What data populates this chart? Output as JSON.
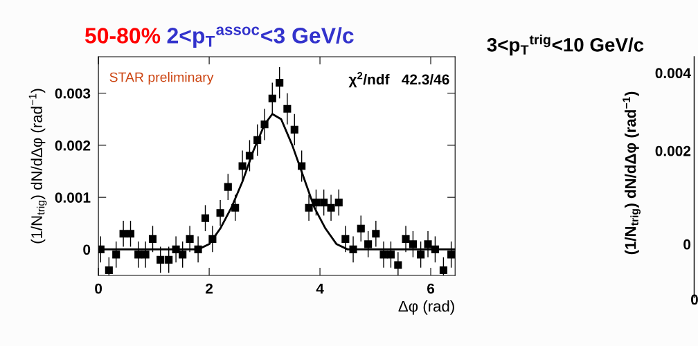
{
  "chart_data": [
    {
      "type": "scatter",
      "title": "50-80%",
      "subtitle": "2<p$_{T}$$^{assoc}$<3 GeV/c",
      "xlabel": "Δφ (rad)",
      "ylabel": "(1/N$_{trig}$) dN/dΔφ (rad$^{−1}$)",
      "annotations": [
        "STAR preliminary",
        "χ$^{2}$/ndf   42.3/46",
        "3<p$_{T}$$^{trig}$<10 GeV/c"
      ],
      "xlim": [
        0,
        6.44
      ],
      "xticks": [
        0,
        2,
        4,
        6
      ],
      "ylim": [
        -0.0005,
        0.0037
      ],
      "yticks": [
        0,
        0.001,
        0.002,
        0.003
      ],
      "grid": false,
      "legend": false,
      "series": [
        {
          "color": "#000000",
          "marker": "square",
          "x": [
            0.04,
            0.19,
            0.32,
            0.45,
            0.58,
            0.72,
            0.85,
            0.98,
            1.12,
            1.27,
            1.4,
            1.52,
            1.65,
            1.8,
            1.93,
            2.06,
            2.2,
            2.34,
            2.47,
            2.6,
            2.73,
            2.87,
            3.0,
            3.14,
            3.27,
            3.41,
            3.54,
            3.67,
            3.8,
            3.93,
            4.07,
            4.2,
            4.34,
            4.46,
            4.6,
            4.74,
            4.87,
            5.01,
            5.15,
            5.28,
            5.41,
            5.55,
            5.68,
            5.82,
            5.95,
            6.08,
            6.23,
            6.37
          ],
          "values": [
            0.0,
            -0.0004,
            -0.0001,
            0.0003,
            0.0003,
            -0.0001,
            -0.0001,
            0.0002,
            -0.0002,
            -0.0002,
            0.0,
            -0.0001,
            0.0002,
            0.0,
            0.0006,
            0.0002,
            0.0007,
            0.0012,
            0.0008,
            0.0016,
            0.0018,
            0.0021,
            0.0024,
            0.0029,
            0.0032,
            0.0027,
            0.0023,
            0.0016,
            0.0008,
            0.0009,
            0.0009,
            0.0008,
            0.0009,
            0.0002,
            0.0,
            0.0004,
            0.0001,
            0.0003,
            -0.0001,
            -0.0001,
            -0.0003,
            0.0002,
            0.0001,
            -0.0001,
            0.0001,
            0.0,
            -0.0004,
            -0.0001
          ],
          "errors": [
            0.00025,
            0.00025,
            0.00025,
            0.00025,
            0.00025,
            0.00025,
            0.00025,
            0.00025,
            0.00025,
            0.00025,
            0.00025,
            0.00025,
            0.00025,
            0.00025,
            0.00025,
            0.00025,
            0.00025,
            0.00025,
            0.00025,
            0.0003,
            0.0003,
            0.0003,
            0.0003,
            0.0003,
            0.0003,
            0.0003,
            0.0003,
            0.0003,
            0.00025,
            0.00025,
            0.00025,
            0.00025,
            0.00025,
            0.00025,
            0.00025,
            0.00025,
            0.00025,
            0.00025,
            0.00025,
            0.00025,
            0.00025,
            0.00025,
            0.00025,
            0.00025,
            0.00025,
            0.00025,
            0.00025,
            0.00025
          ]
        },
        {
          "type": "line",
          "color": "#000000",
          "x": [
            0,
            1.6,
            1.8,
            2.0,
            2.2,
            2.4,
            2.6,
            2.8,
            3.0,
            3.14,
            3.3,
            3.5,
            3.7,
            3.9,
            4.1,
            4.3,
            4.5,
            4.7,
            6.44
          ],
          "values": [
            0,
            0,
            0,
            0.0001,
            0.0004,
            0.0008,
            0.0013,
            0.0019,
            0.0024,
            0.0026,
            0.0025,
            0.002,
            0.0014,
            0.0008,
            0.0004,
            0.0001,
            0,
            0,
            0
          ]
        }
      ]
    },
    {
      "type": "other",
      "ylabel": "(1/N$_{trig}$) dN/dΔφ (rad$^{−1}$)",
      "annotations": [
        "0.004",
        "0.002",
        "0",
        "0"
      ]
    }
  ]
}
